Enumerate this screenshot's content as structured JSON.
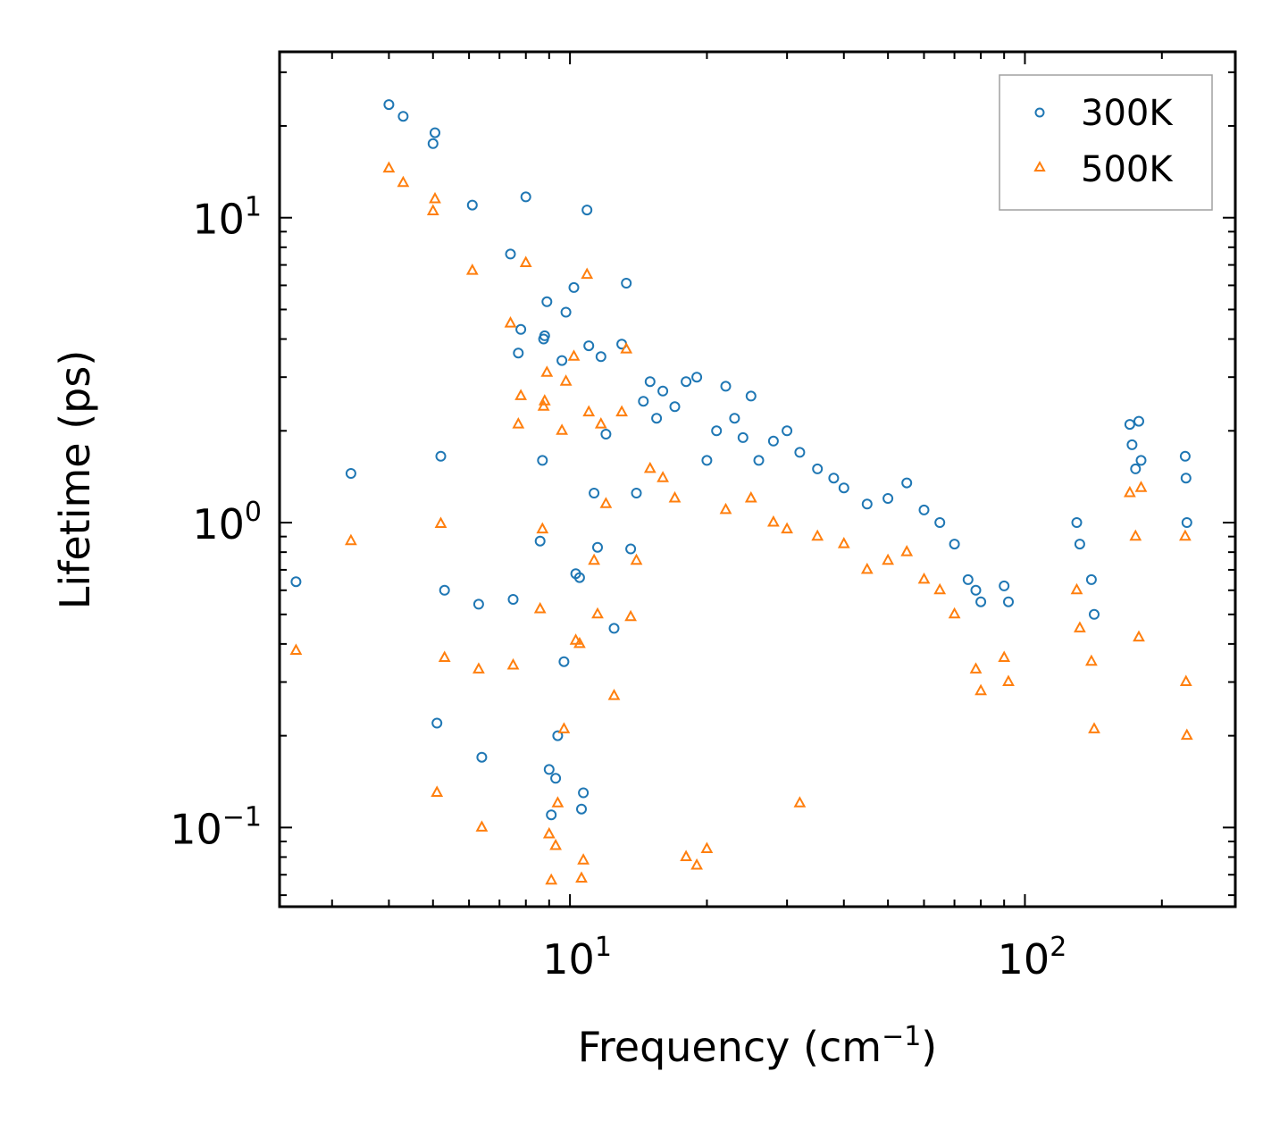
{
  "chart_data": {
    "type": "scatter",
    "title": "",
    "xlabel": {
      "base": "Frequency (cm",
      "sup": "−1",
      "end": ")"
    },
    "ylabel": "Lifetime (ps)",
    "xscale": "log",
    "yscale": "log",
    "xlim": [
      2.3,
      290
    ],
    "ylim": [
      0.055,
      35
    ],
    "xticks": [
      {
        "value": 10,
        "base": "10",
        "exp": "1"
      },
      {
        "value": 100,
        "base": "10",
        "exp": "2"
      }
    ],
    "yticks": [
      {
        "value": 0.1,
        "base": "10",
        "exp": "−1"
      },
      {
        "value": 1,
        "base": "10",
        "exp": "0"
      },
      {
        "value": 10,
        "base": "10",
        "exp": "1"
      }
    ],
    "legend_position": "top-right",
    "series": [
      {
        "name": "300K",
        "marker": "circle",
        "color": "#1f77b4",
        "points": [
          [
            2.5,
            0.64
          ],
          [
            3.3,
            1.45
          ],
          [
            4.0,
            23.5
          ],
          [
            4.3,
            21.5
          ],
          [
            5.0,
            17.5
          ],
          [
            5.05,
            19.0
          ],
          [
            5.1,
            0.22
          ],
          [
            5.2,
            1.65
          ],
          [
            5.3,
            0.6
          ],
          [
            6.1,
            11.0
          ],
          [
            6.3,
            0.54
          ],
          [
            6.4,
            0.17
          ],
          [
            7.4,
            7.6
          ],
          [
            7.5,
            0.56
          ],
          [
            7.7,
            3.6
          ],
          [
            7.8,
            4.3
          ],
          [
            8.0,
            11.7
          ],
          [
            8.6,
            0.87
          ],
          [
            8.7,
            1.6
          ],
          [
            8.75,
            4.0
          ],
          [
            8.8,
            4.1
          ],
          [
            8.9,
            5.3
          ],
          [
            9.0,
            0.155
          ],
          [
            9.1,
            0.11
          ],
          [
            9.3,
            0.145
          ],
          [
            9.4,
            0.2
          ],
          [
            9.6,
            3.4
          ],
          [
            9.7,
            0.35
          ],
          [
            9.8,
            4.9
          ],
          [
            10.2,
            5.9
          ],
          [
            10.3,
            0.68
          ],
          [
            10.5,
            0.66
          ],
          [
            10.6,
            0.115
          ],
          [
            10.7,
            0.13
          ],
          [
            10.9,
            10.6
          ],
          [
            11.0,
            3.8
          ],
          [
            11.3,
            1.25
          ],
          [
            11.5,
            0.83
          ],
          [
            11.7,
            3.5
          ],
          [
            12.0,
            1.95
          ],
          [
            12.5,
            0.45
          ],
          [
            13.0,
            3.85
          ],
          [
            13.3,
            6.1
          ],
          [
            13.6,
            0.82
          ],
          [
            14.0,
            1.25
          ],
          [
            14.5,
            2.5
          ],
          [
            15.0,
            2.9
          ],
          [
            15.5,
            2.2
          ],
          [
            16.0,
            2.7
          ],
          [
            17.0,
            2.4
          ],
          [
            18.0,
            2.9
          ],
          [
            19.0,
            3.0
          ],
          [
            20.0,
            1.6
          ],
          [
            21.0,
            2.0
          ],
          [
            22.0,
            2.8
          ],
          [
            23.0,
            2.2
          ],
          [
            24.0,
            1.9
          ],
          [
            25.0,
            2.6
          ],
          [
            26.0,
            1.6
          ],
          [
            28.0,
            1.85
          ],
          [
            30.0,
            2.0
          ],
          [
            32.0,
            1.7
          ],
          [
            35.0,
            1.5
          ],
          [
            38.0,
            1.4
          ],
          [
            40.0,
            1.3
          ],
          [
            45.0,
            1.15
          ],
          [
            50.0,
            1.2
          ],
          [
            55.0,
            1.35
          ],
          [
            60.0,
            1.1
          ],
          [
            65.0,
            1.0
          ],
          [
            70.0,
            0.85
          ],
          [
            75.0,
            0.65
          ],
          [
            78.0,
            0.6
          ],
          [
            80.0,
            0.55
          ],
          [
            90.0,
            0.62
          ],
          [
            92.0,
            0.55
          ],
          [
            130.0,
            1.0
          ],
          [
            132.0,
            0.85
          ],
          [
            140.0,
            0.65
          ],
          [
            142.0,
            0.5
          ],
          [
            170.0,
            2.1
          ],
          [
            172.0,
            1.8
          ],
          [
            175.0,
            1.5
          ],
          [
            178.0,
            2.15
          ],
          [
            180.0,
            1.6
          ],
          [
            225.0,
            1.65
          ],
          [
            226.0,
            1.4
          ],
          [
            227.0,
            1.0
          ]
        ]
      },
      {
        "name": "500K",
        "marker": "triangle",
        "color": "#ff7f0e",
        "points": [
          [
            2.5,
            0.38
          ],
          [
            3.3,
            0.87
          ],
          [
            4.0,
            14.5
          ],
          [
            4.3,
            13.0
          ],
          [
            5.0,
            10.5
          ],
          [
            5.05,
            11.5
          ],
          [
            5.1,
            0.13
          ],
          [
            5.2,
            0.99
          ],
          [
            5.3,
            0.36
          ],
          [
            6.1,
            6.7
          ],
          [
            6.3,
            0.33
          ],
          [
            6.4,
            0.1
          ],
          [
            7.4,
            4.5
          ],
          [
            7.5,
            0.34
          ],
          [
            7.7,
            2.1
          ],
          [
            7.8,
            2.6
          ],
          [
            8.0,
            7.1
          ],
          [
            8.6,
            0.52
          ],
          [
            8.7,
            0.95
          ],
          [
            8.75,
            2.4
          ],
          [
            8.8,
            2.5
          ],
          [
            8.9,
            3.1
          ],
          [
            9.0,
            0.095
          ],
          [
            9.1,
            0.067
          ],
          [
            9.3,
            0.087
          ],
          [
            9.4,
            0.12
          ],
          [
            9.6,
            2.0
          ],
          [
            9.7,
            0.21
          ],
          [
            9.8,
            2.9
          ],
          [
            10.2,
            3.5
          ],
          [
            10.3,
            0.41
          ],
          [
            10.5,
            0.4
          ],
          [
            10.6,
            0.068
          ],
          [
            10.7,
            0.078
          ],
          [
            10.9,
            6.5
          ],
          [
            11.0,
            2.3
          ],
          [
            11.3,
            0.75
          ],
          [
            11.5,
            0.5
          ],
          [
            11.7,
            2.1
          ],
          [
            12.0,
            1.15
          ],
          [
            12.5,
            0.27
          ],
          [
            13.0,
            2.3
          ],
          [
            13.3,
            3.7
          ],
          [
            13.6,
            0.49
          ],
          [
            14.0,
            0.75
          ],
          [
            15.0,
            1.5
          ],
          [
            16.0,
            1.4
          ],
          [
            17.0,
            1.2
          ],
          [
            18.0,
            0.08
          ],
          [
            19.0,
            0.075
          ],
          [
            20.0,
            0.085
          ],
          [
            22.0,
            1.1
          ],
          [
            25.0,
            1.2
          ],
          [
            28.0,
            1.0
          ],
          [
            30.0,
            0.95
          ],
          [
            32.0,
            0.12
          ],
          [
            35.0,
            0.9
          ],
          [
            40.0,
            0.85
          ],
          [
            45.0,
            0.7
          ],
          [
            50.0,
            0.75
          ],
          [
            55.0,
            0.8
          ],
          [
            60.0,
            0.65
          ],
          [
            65.0,
            0.6
          ],
          [
            70.0,
            0.5
          ],
          [
            78.0,
            0.33
          ],
          [
            80.0,
            0.28
          ],
          [
            90.0,
            0.36
          ],
          [
            92.0,
            0.3
          ],
          [
            130.0,
            0.6
          ],
          [
            132.0,
            0.45
          ],
          [
            140.0,
            0.35
          ],
          [
            142.0,
            0.21
          ],
          [
            170.0,
            1.25
          ],
          [
            175.0,
            0.9
          ],
          [
            178.0,
            0.42
          ],
          [
            180.0,
            1.3
          ],
          [
            225.0,
            0.9
          ],
          [
            226.0,
            0.3
          ],
          [
            227.0,
            0.2
          ]
        ]
      }
    ]
  }
}
